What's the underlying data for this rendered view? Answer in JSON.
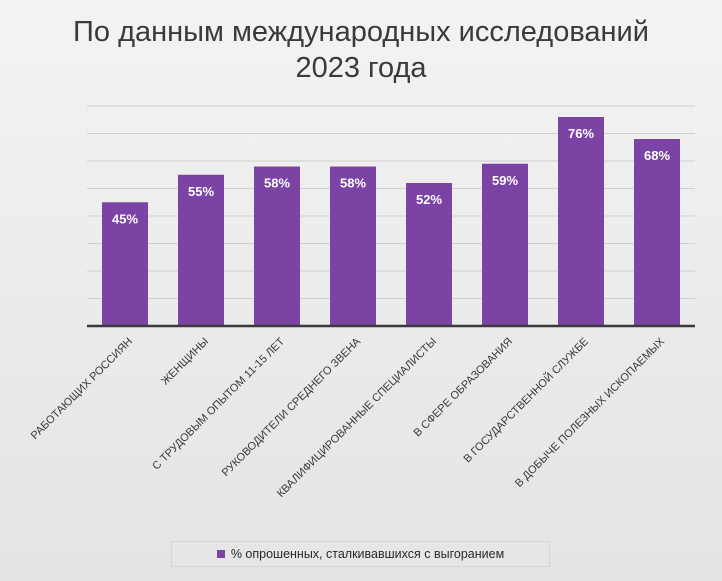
{
  "chart_data": {
    "type": "bar",
    "title_lines": [
      "По данным международных исследований",
      "2023 года"
    ],
    "categories": [
      "РАБОТАЮЩИХ РОССИЯН",
      "ЖЕНЩИНЫ",
      "С ТРУДОВЫМ ОПЫТОМ 11-15 ЛЕТ",
      "РУКОВОДИТЕЛИ СРЕДНЕГО ЗВЕНА",
      "КВАЛИФИЦИРОВАННЫЕ СПЕЦИАЛИСТЫ",
      "В СФЕРЕ ОБРАЗОВАНИЯ",
      "В ГОСУДАРСТВЕННОЙ СЛУЖБЕ",
      "В ДОБЫЧЕ ПОЛЕЗНЫХ ИСКОПАЕМЫХ"
    ],
    "values": [
      45,
      55,
      58,
      58,
      52,
      59,
      76,
      68
    ],
    "data_labels": [
      "45%",
      "55%",
      "58%",
      "58%",
      "52%",
      "59%",
      "76%",
      "68%"
    ],
    "ylim": [
      0,
      80
    ],
    "grid": true,
    "legend": {
      "position": "bottom",
      "entries": [
        "% опрошенных, сталкивавшихся с выгоранием"
      ]
    },
    "colors": {
      "bar": "#7b44a4",
      "grid": "#cfcfcf",
      "axis": "#3a3a3a"
    }
  }
}
